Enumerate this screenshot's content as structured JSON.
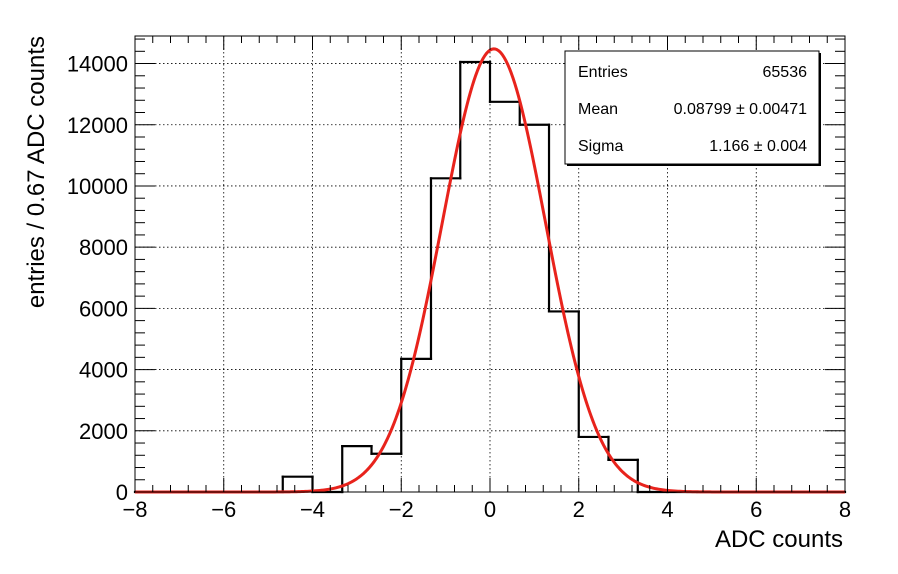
{
  "chart_data": {
    "type": "bar",
    "subtype": "histogram-with-fit",
    "title": "",
    "xlabel": "ADC counts",
    "ylabel": "entries / 0.67 ADC counts",
    "xlim": [
      -8,
      8
    ],
    "ylim": [
      0,
      14900
    ],
    "grid": true,
    "x_ticks": [
      -8,
      -6,
      -4,
      -2,
      0,
      2,
      4,
      6,
      8
    ],
    "x_tick_labels": [
      "−8",
      "−6",
      "−4",
      "−2",
      "0",
      "2",
      "4",
      "6",
      "8"
    ],
    "y_ticks": [
      0,
      2000,
      4000,
      6000,
      8000,
      10000,
      12000,
      14000
    ],
    "y_tick_labels": [
      "0",
      "2000",
      "4000",
      "6000",
      "8000",
      "10000",
      "12000",
      "14000"
    ],
    "bin_width": 0.67,
    "bin_edges": [
      -8.0,
      -7.33,
      -6.67,
      -6.0,
      -5.33,
      -4.67,
      -4.0,
      -3.33,
      -2.67,
      -2.0,
      -1.33,
      -0.67,
      0.0,
      0.67,
      1.33,
      2.0,
      2.67,
      3.33,
      4.0,
      4.67,
      5.33,
      6.0,
      6.67,
      7.33,
      8.0
    ],
    "values": [
      0,
      0,
      0,
      0,
      0,
      500,
      0,
      1500,
      1250,
      4350,
      10250,
      14050,
      12750,
      12000,
      5900,
      1800,
      1050,
      0,
      0,
      0,
      0,
      0,
      0,
      0
    ],
    "fit": {
      "type": "gaussian",
      "amplitude": 14480,
      "mean": 0.08799,
      "sigma": 1.166,
      "color": "#e8231c"
    },
    "histogram_color": "#000000",
    "stats_box": {
      "rows": [
        {
          "label": "Entries",
          "value": "65536"
        },
        {
          "label": "Mean",
          "value": "0.08799 ± 0.00471"
        },
        {
          "label": "Sigma",
          "value": "1.166 ± 0.004"
        }
      ]
    }
  }
}
